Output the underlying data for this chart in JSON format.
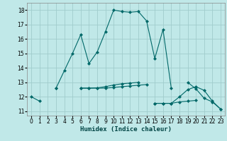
{
  "title": "",
  "xlabel": "Humidex (Indice chaleur)",
  "bg_color": "#c0e8e8",
  "grid_color": "#a0cccc",
  "line_color": "#006868",
  "xlim": [
    -0.5,
    23.5
  ],
  "ylim": [
    10.7,
    18.5
  ],
  "xticks": [
    0,
    1,
    2,
    3,
    4,
    5,
    6,
    7,
    8,
    9,
    10,
    11,
    12,
    13,
    14,
    15,
    16,
    17,
    18,
    19,
    20,
    21,
    22,
    23
  ],
  "yticks": [
    11,
    12,
    13,
    14,
    15,
    16,
    17,
    18
  ],
  "series": [
    [
      12.0,
      11.7,
      null,
      12.6,
      13.8,
      15.0,
      16.3,
      14.3,
      15.1,
      16.5,
      18.0,
      17.9,
      17.85,
      17.9,
      17.25,
      14.65,
      16.65,
      12.6,
      null,
      13.0,
      12.55,
      11.9,
      11.65,
      11.15
    ],
    [
      null,
      null,
      null,
      null,
      null,
      null,
      12.6,
      12.6,
      12.6,
      12.6,
      12.65,
      12.7,
      12.75,
      12.8,
      12.85,
      null,
      null,
      null,
      null,
      null,
      null,
      null,
      null,
      null
    ],
    [
      null,
      null,
      null,
      12.6,
      null,
      null,
      12.6,
      12.6,
      12.62,
      12.7,
      12.82,
      12.9,
      12.95,
      13.0,
      null,
      11.55,
      11.55,
      11.55,
      11.65,
      11.7,
      11.75,
      null,
      null,
      null
    ],
    [
      null,
      null,
      null,
      null,
      null,
      null,
      null,
      null,
      null,
      null,
      null,
      null,
      null,
      null,
      null,
      11.55,
      11.55,
      11.55,
      12.0,
      12.5,
      12.7,
      12.45,
      11.7,
      11.15
    ]
  ]
}
